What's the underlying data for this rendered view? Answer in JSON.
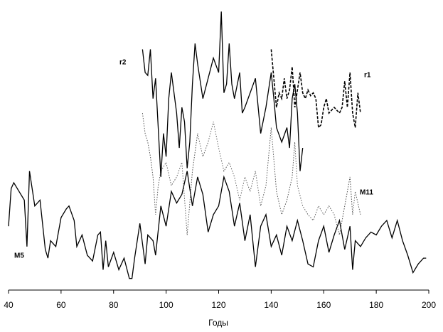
{
  "chart_data": {
    "type": "line",
    "x_label": "Годы",
    "xlim": [
      40,
      200
    ],
    "xticks": [
      40,
      60,
      80,
      100,
      120,
      140,
      160,
      180,
      200
    ],
    "ylim": [
      0,
      100
    ],
    "series": [
      {
        "name": "M5",
        "color": "#000000",
        "style": "solid",
        "x": [
          40,
          41,
          42,
          44,
          46,
          47,
          48,
          50,
          52,
          54,
          55,
          56,
          58,
          60,
          62,
          63,
          65,
          66,
          68,
          70,
          72,
          74,
          75,
          76,
          77,
          78,
          80,
          82,
          84,
          86,
          87,
          88,
          90,
          92,
          93,
          95,
          96,
          98,
          100,
          102,
          104,
          106,
          108,
          110,
          112,
          114,
          116,
          118,
          120,
          122,
          124,
          126,
          128,
          130,
          132,
          134,
          136,
          138,
          140,
          142,
          144,
          146,
          148,
          150,
          152,
          154,
          156,
          158,
          160,
          162,
          164,
          166,
          168,
          170,
          171,
          172,
          174,
          176,
          178,
          180,
          182,
          184,
          186,
          188,
          190,
          192,
          194,
          196,
          198,
          199
        ],
        "values": [
          22,
          35,
          37,
          34,
          31,
          15,
          41,
          29,
          31,
          14,
          11,
          17,
          15,
          25,
          28,
          29,
          24,
          15,
          19,
          12,
          10,
          19,
          20,
          7,
          17,
          8,
          13,
          7,
          11,
          4,
          4,
          11,
          23,
          9,
          19,
          17,
          12,
          29,
          22,
          34,
          30,
          33,
          41,
          29,
          39,
          33,
          20,
          26,
          29,
          39,
          34,
          22,
          30,
          17,
          26,
          8,
          22,
          26,
          15,
          19,
          12,
          22,
          17,
          24,
          17,
          9,
          8,
          17,
          22,
          13,
          19,
          24,
          14,
          22,
          7,
          17,
          15,
          18,
          20,
          19,
          22,
          24,
          18,
          24,
          17,
          12,
          6,
          9,
          11,
          11
        ]
      },
      {
        "name": "M11",
        "color": "#555555",
        "style": "dotted",
        "x": [
          91,
          92,
          93,
          94,
          95,
          96,
          97,
          98,
          100,
          102,
          104,
          106,
          108,
          110,
          112,
          114,
          116,
          118,
          120,
          122,
          124,
          126,
          128,
          130,
          132,
          134,
          136,
          138,
          140,
          142,
          144,
          146,
          148,
          149,
          150,
          152,
          154,
          156,
          158,
          160,
          162,
          164,
          166,
          168,
          170,
          171,
          172,
          174
        ],
        "values": [
          61,
          54,
          51,
          46,
          39,
          26,
          36,
          41,
          44,
          36,
          39,
          44,
          19,
          41,
          54,
          46,
          51,
          58,
          49,
          41,
          44,
          39,
          31,
          39,
          34,
          41,
          29,
          36,
          56,
          34,
          26,
          31,
          39,
          51,
          36,
          29,
          26,
          24,
          29,
          26,
          29,
          26,
          19,
          29,
          39,
          26,
          34,
          26
        ]
      },
      {
        "name": "r2",
        "color": "#000000",
        "style": "solid",
        "x": [
          91,
          92,
          93,
          94,
          95,
          96,
          97,
          98,
          99,
          100,
          101,
          102,
          104,
          105,
          106,
          107,
          108,
          109,
          110,
          111,
          112,
          114,
          116,
          118,
          120,
          121,
          122,
          123,
          124,
          125,
          126,
          128,
          129,
          130,
          132,
          134,
          136,
          138,
          140,
          141,
          142,
          144,
          146,
          147,
          148,
          149,
          150,
          151,
          152
        ],
        "values": [
          83,
          75,
          74,
          83,
          66,
          73,
          56,
          39,
          54,
          46,
          66,
          75,
          61,
          49,
          63,
          58,
          42,
          51,
          71,
          85,
          78,
          66,
          73,
          80,
          75,
          96,
          68,
          71,
          85,
          71,
          66,
          75,
          61,
          63,
          68,
          73,
          54,
          63,
          75,
          66,
          56,
          51,
          56,
          49,
          66,
          71,
          61,
          41,
          49
        ]
      },
      {
        "name": "r1",
        "color": "#000000",
        "style": "dashed",
        "x": [
          140,
          141,
          142,
          143,
          144,
          145,
          146,
          147,
          148,
          149,
          150,
          151,
          152,
          153,
          154,
          155,
          156,
          157,
          158,
          159,
          160,
          161,
          162,
          164,
          166,
          167,
          168,
          169,
          170,
          171,
          172,
          173,
          174
        ],
        "values": [
          83,
          73,
          63,
          68,
          66,
          73,
          66,
          69,
          77,
          63,
          69,
          75,
          68,
          66,
          69,
          67,
          68,
          66,
          56,
          57,
          63,
          66,
          61,
          63,
          61,
          63,
          72,
          63,
          75,
          61,
          56,
          68,
          61
        ]
      }
    ]
  }
}
